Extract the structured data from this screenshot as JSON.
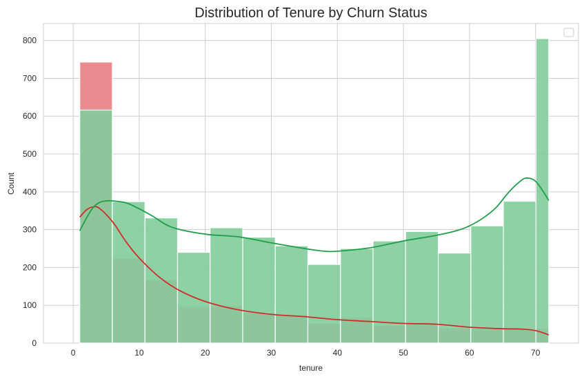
{
  "chart_data": {
    "type": "bar",
    "title": "Distribution of Tenure by Churn Status",
    "xlabel": "tenure",
    "ylabel": "Count",
    "xlim": [
      -4.5,
      76.5
    ],
    "ylim": [
      0,
      845
    ],
    "xticks": [
      0,
      10,
      20,
      30,
      40,
      50,
      60,
      70
    ],
    "yticks": [
      0,
      100,
      200,
      300,
      400,
      500,
      600,
      700,
      800
    ],
    "grid": true,
    "legend": "top-right",
    "bin_edges": [
      1,
      5.93,
      10.87,
      15.8,
      20.73,
      25.67,
      30.6,
      35.53,
      40.47,
      45.4,
      50.33,
      55.27,
      60.2,
      65.13,
      70.07,
      72
    ],
    "bin_edges_note": "",
    "series": [
      {
        "color": "#e8878a",
        "values": [
          743,
          224,
          167,
          97,
          98,
          80,
          75,
          52,
          68,
          47,
          52,
          40,
          38,
          37,
          40
        ],
        "kde_color": "#d12c2c",
        "kde_x": [
          1,
          2,
          3,
          4,
          6,
          8,
          10,
          13,
          16,
          20,
          25,
          30,
          35,
          40,
          45,
          50,
          55,
          60,
          65,
          68,
          70,
          72
        ],
        "kde_y": [
          333,
          352,
          360,
          356,
          320,
          268,
          225,
          175,
          140,
          110,
          88,
          76,
          70,
          62,
          57,
          52,
          50,
          42,
          38,
          37,
          33,
          22
        ]
      },
      {
        "color": "#82cc9b",
        "values": [
          616,
          374,
          331,
          240,
          305,
          280,
          257,
          208,
          250,
          270,
          295,
          238,
          310,
          375,
          805
        ],
        "kde_color": "#1f9e4a",
        "kde_x": [
          1,
          2,
          3,
          4,
          5,
          6,
          8,
          10,
          12,
          15,
          20,
          25,
          30,
          35,
          38,
          40,
          45,
          50,
          55,
          58,
          60,
          62,
          64,
          66,
          68,
          69,
          70,
          71,
          72
        ],
        "kde_y": [
          297,
          330,
          358,
          372,
          376,
          376,
          371,
          355,
          336,
          306,
          288,
          281,
          265,
          250,
          243,
          243,
          252,
          270,
          285,
          297,
          310,
          330,
          358,
          400,
          432,
          436,
          428,
          405,
          377
        ]
      }
    ]
  }
}
